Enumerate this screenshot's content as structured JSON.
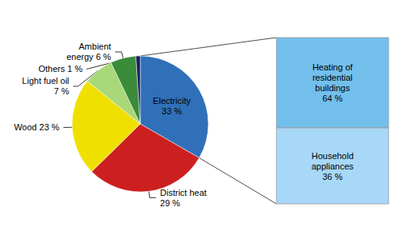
{
  "chart_data": {
    "type": "pie",
    "values": [
      33,
      29,
      23,
      7,
      6,
      1
    ],
    "value_labels": [
      "Electricity\n33 %",
      "District heat\n29 %",
      "Wood 23 %",
      "Light fuel oil\n7 %",
      "Ambient\nenergy 6 %",
      "Others 1 %"
    ],
    "colors": [
      "#3070B8",
      "#CC2020",
      "#F0E000",
      "#A8D878",
      "#3A8C3A",
      "#1A1A60"
    ],
    "data_labels": true,
    "annotations": [
      {
        "text": "Heating of\nresidential\nbuildings\n64 %",
        "color": "#72BFEC"
      },
      {
        "text": "Household\nappliances\n36 %",
        "color": "#A8D8F8"
      }
    ]
  }
}
